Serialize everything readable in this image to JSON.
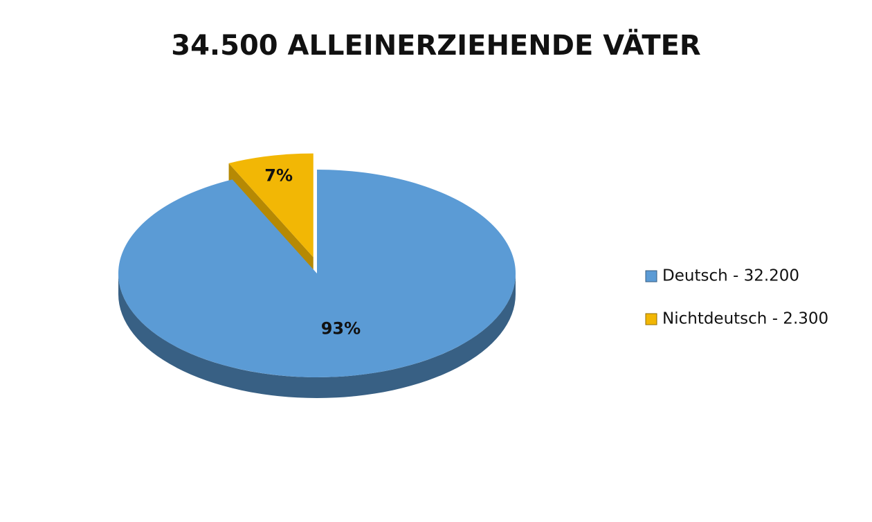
{
  "chart_data": {
    "type": "pie",
    "title": "34.500 ALLEINERZIEHENDE VÄTER",
    "categories": [
      "Deutsch - 32.200",
      "Nichtdeutsch - 2.300"
    ],
    "values": [
      93,
      7
    ],
    "value_labels": [
      "93%",
      "7%"
    ],
    "colors": [
      "#5b9bd5",
      "#f2b705"
    ],
    "exploded": [
      false,
      true
    ],
    "legend": "right"
  }
}
